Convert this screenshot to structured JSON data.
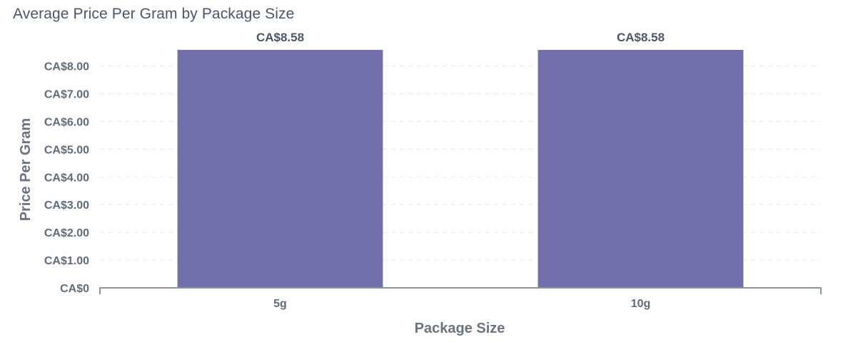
{
  "chart_data": {
    "type": "bar",
    "title": "Average Price Per Gram by Package Size",
    "xlabel": "Package Size",
    "ylabel": "Price Per Gram",
    "categories": [
      "5g",
      "10g"
    ],
    "values": [
      8.58,
      8.58
    ],
    "value_labels": [
      "CA$8.58",
      "CA$8.58"
    ],
    "ylim": [
      0,
      8.58
    ],
    "yticks": [
      0,
      1,
      2,
      3,
      4,
      5,
      6,
      7,
      8
    ],
    "ytick_labels": [
      "CA$0",
      "CA$1.00",
      "CA$2.00",
      "CA$3.00",
      "CA$4.00",
      "CA$5.00",
      "CA$6.00",
      "CA$7.00",
      "CA$8.00"
    ],
    "grid": true,
    "legend": "none",
    "colors": {
      "bar": "#7170ab",
      "grid": "#e6e8ec",
      "axis": "#8a93a0",
      "text": "#5f6b7a"
    }
  }
}
